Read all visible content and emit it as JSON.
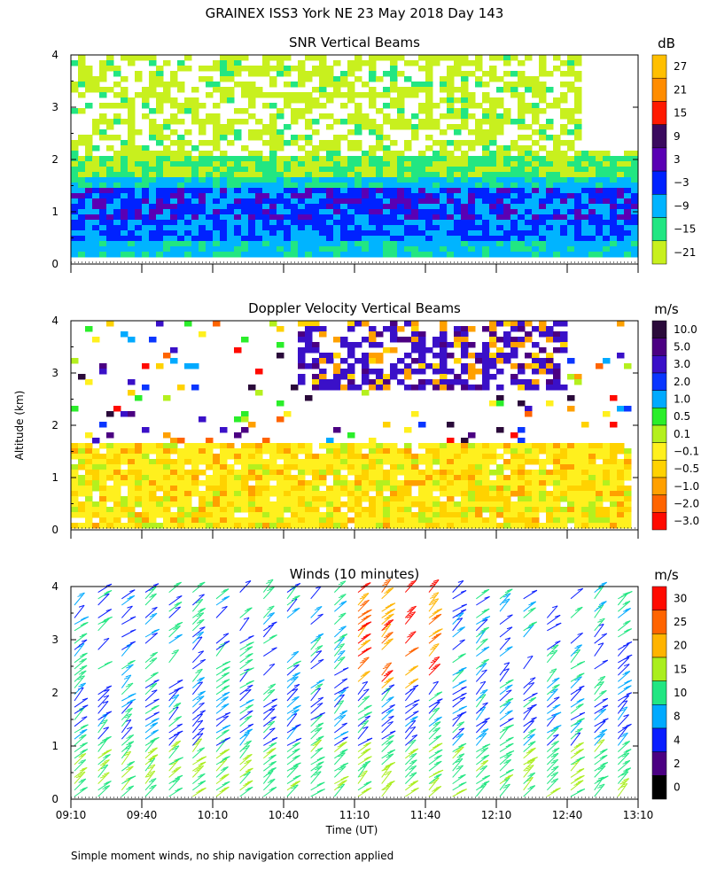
{
  "title": "GRAINEX ISS3 York NE  23 May 2018 Day 143",
  "ylabel": "Altitude (km)",
  "xlabel": "Time (UT)",
  "footnote": "Simple moment winds, no ship navigation correction applied",
  "chart_data": [
    {
      "type": "heatmap",
      "title": "SNR Vertical Beams",
      "xlabel": "Time (UT)",
      "ylabel": "Altitude (km)",
      "x_range": [
        "09:10",
        "13:10"
      ],
      "ylim": [
        0,
        4
      ],
      "y_ticks": [
        "0",
        "1",
        "2",
        "3",
        "4"
      ],
      "x_ticks": [
        "09:10",
        "09:40",
        "10:10",
        "10:40",
        "11:10",
        "11:40",
        "12:10",
        "12:40",
        "13:10"
      ],
      "colorbar": {
        "unit": "dB",
        "labels": [
          "27",
          "21",
          "15",
          "9",
          "3",
          "−3",
          "−9",
          "−15",
          "−21"
        ],
        "colors": [
          "#ffbf00",
          "#ff8c00",
          "#ff1a00",
          "#3a0a5e",
          "#5a00b4",
          "#0022ff",
          "#00b4ff",
          "#22e682",
          "#c8f01e"
        ]
      },
      "description_layers": [
        {
          "band_km": [
            0.0,
            0.5
          ],
          "level": "−9"
        },
        {
          "band_km": [
            0.5,
            1.6
          ],
          "level": "−3"
        },
        {
          "band_km": [
            1.6,
            2.0
          ],
          "level": "−15"
        },
        {
          "band_km": [
            2.0,
            4.0
          ],
          "level": "−21"
        }
      ]
    },
    {
      "type": "heatmap",
      "title": "Doppler Velocity Vertical Beams",
      "xlabel": "Time (UT)",
      "ylabel": "Altitude (km)",
      "x_range": [
        "09:10",
        "13:10"
      ],
      "ylim": [
        0,
        4
      ],
      "y_ticks": [
        "0",
        "1",
        "2",
        "3",
        "4"
      ],
      "x_ticks": [
        "09:10",
        "09:40",
        "10:10",
        "10:40",
        "11:10",
        "11:40",
        "12:10",
        "12:40",
        "13:10"
      ],
      "colorbar": {
        "unit": "m/s",
        "labels": [
          "10.0",
          "5.0",
          "3.0",
          "2.0",
          "1.0",
          "0.5",
          "0.1",
          "−0.1",
          "−0.5",
          "−1.0",
          "−2.0",
          "−3.0"
        ],
        "colors": [
          "#2a0a3a",
          "#4b0082",
          "#3a10c8",
          "#0a36ff",
          "#00aaff",
          "#2aee2a",
          "#b4f01e",
          "#fff01e",
          "#ffd200",
          "#ffa000",
          "#ff6400",
          "#ff0a00"
        ]
      },
      "description_layers": [
        {
          "band_km": [
            0.0,
            1.7
          ],
          "level": "−0.1"
        },
        {
          "band_km": [
            2.5,
            4.0
          ],
          "level": "3.0"
        }
      ]
    },
    {
      "type": "scatter",
      "subtype": "wind-barbs",
      "title": "Winds (10 minutes)",
      "xlabel": "Time (UT)",
      "ylabel": "Altitude (km)",
      "x_range": [
        "09:10",
        "13:10"
      ],
      "ylim": [
        0,
        4
      ],
      "y_ticks": [
        "0",
        "1",
        "2",
        "3",
        "4"
      ],
      "x_ticks": [
        "09:10",
        "09:40",
        "10:10",
        "10:40",
        "11:10",
        "11:40",
        "12:10",
        "12:40",
        "13:10"
      ],
      "colorbar": {
        "unit": "m/s",
        "labels": [
          "30",
          "25",
          "20",
          "15",
          "10",
          "8",
          "4",
          "2",
          "0"
        ],
        "colors": [
          "#ff0a00",
          "#ff6400",
          "#ffb400",
          "#aaee1e",
          "#22e682",
          "#00aaff",
          "#0a1eff",
          "#4b0082",
          "#000000"
        ]
      },
      "profile_times": [
        "09:10",
        "09:20",
        "09:30",
        "09:40",
        "09:50",
        "10:00",
        "10:10",
        "10:20",
        "10:30",
        "10:40",
        "10:50",
        "11:00",
        "11:10",
        "11:20",
        "11:30",
        "11:40",
        "11:50",
        "12:00",
        "12:10",
        "12:20",
        "12:30",
        "12:40",
        "12:50",
        "13:00"
      ],
      "speed_by_altitude_km": [
        {
          "altitude_km": 0.5,
          "speed": 15
        },
        {
          "altitude_km": 1.5,
          "speed": 8
        },
        {
          "altitude_km": 2.5,
          "speed": 10
        },
        {
          "altitude_km": 3.5,
          "speed": 8
        }
      ]
    }
  ]
}
